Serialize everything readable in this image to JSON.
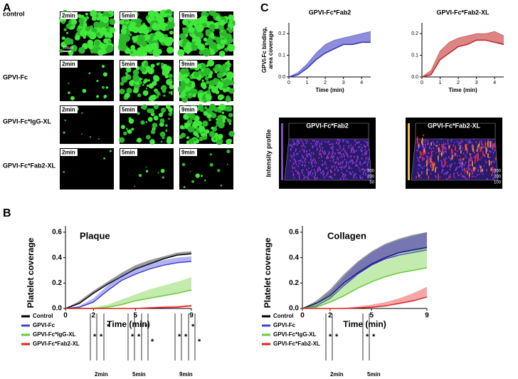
{
  "panel_labels": [
    "A",
    "B",
    "C"
  ],
  "panel_a": {
    "rows": [
      "control",
      "GPVI-Fc",
      "GPVI-Fc*IgG-XL",
      "GPVI-Fc*Fab2-XL"
    ],
    "times": [
      "2min",
      "5min",
      "9min"
    ],
    "scale_bar": "100µm"
  },
  "chart_data": [
    {
      "type": "line",
      "title": "Plaque",
      "xlabel": "Time (min)",
      "ylabel": "Platelet coverage",
      "x": [
        0,
        1,
        2,
        3,
        4,
        5,
        6,
        7,
        8,
        9
      ],
      "xlim": [
        0,
        9
      ],
      "xticks": [
        0,
        2,
        5,
        9
      ],
      "ylim": [
        0,
        0.65
      ],
      "yticks": [
        {
          "value": 0,
          "label": "0.0"
        },
        0.2,
        0.4,
        0.6
      ],
      "series": [
        {
          "name": "Control",
          "color": "#000000",
          "values": [
            0,
            0.04,
            0.12,
            0.19,
            0.25,
            0.31,
            0.35,
            0.39,
            0.42,
            0.43
          ],
          "error": [
            0,
            0.02,
            0.02,
            0.02,
            0.03,
            0.03,
            0.03,
            0.02,
            0.02,
            0.02
          ]
        },
        {
          "name": "GPVI-Fc",
          "color": "#4040d8",
          "values": [
            0,
            0.01,
            0.05,
            0.14,
            0.22,
            0.27,
            0.31,
            0.34,
            0.36,
            0.37
          ],
          "error": [
            0,
            0.01,
            0.03,
            0.04,
            0.04,
            0.04,
            0.04,
            0.04,
            0.04,
            0.04
          ]
        },
        {
          "name": "GPVI-Fc*IgG-XL",
          "color": "#66cc33",
          "values": [
            0,
            0,
            0,
            0.01,
            0.03,
            0.06,
            0.08,
            0.1,
            0.12,
            0.145
          ],
          "error": [
            0,
            0,
            0.01,
            0.02,
            0.04,
            0.05,
            0.07,
            0.08,
            0.09,
            0.1
          ]
        },
        {
          "name": "GPVI-Fc*Fab2-XL",
          "color": "#e02020",
          "values": [
            0,
            0,
            0,
            0,
            0,
            0,
            0.005,
            0.008,
            0.01,
            0.02
          ],
          "error": [
            0,
            0,
            0,
            0,
            0,
            0.005,
            0.005,
            0.01,
            0.01,
            0.01
          ]
        }
      ],
      "significance": [
        {
          "label": "2min",
          "stars": [
            "*",
            "*",
            "*"
          ]
        },
        {
          "label": "5min",
          "stars": [
            "*",
            "*",
            "*",
            "*"
          ]
        },
        {
          "label": "9min",
          "stars": [
            "*",
            "*",
            "*",
            "*"
          ]
        }
      ]
    },
    {
      "type": "line",
      "title": "Collagen",
      "xlabel": "Time (min)",
      "ylabel": "Platelet coverage",
      "x": [
        0,
        1,
        2,
        3,
        4,
        5,
        6,
        7,
        8,
        9
      ],
      "xlim": [
        0,
        9
      ],
      "xticks": [
        0,
        2,
        5,
        9
      ],
      "ylim": [
        0,
        0.65
      ],
      "yticks": [
        {
          "value": 0,
          "label": "0.0"
        },
        0.2,
        0.4,
        0.6
      ],
      "series": [
        {
          "name": "Control",
          "color": "#000000",
          "values": [
            0,
            0.04,
            0.1,
            0.2,
            0.28,
            0.35,
            0.4,
            0.44,
            0.46,
            0.48
          ],
          "error": [
            0,
            0.02,
            0.05,
            0.07,
            0.09,
            0.1,
            0.11,
            0.11,
            0.12,
            0.12
          ]
        },
        {
          "name": "GPVI-Fc",
          "color": "#4040d8",
          "values": [
            0,
            0.02,
            0.08,
            0.18,
            0.27,
            0.34,
            0.39,
            0.42,
            0.44,
            0.46
          ],
          "error": [
            0,
            0.02,
            0.05,
            0.07,
            0.09,
            0.1,
            0.11,
            0.12,
            0.13,
            0.14
          ]
        },
        {
          "name": "GPVI-Fc*IgG-XL",
          "color": "#66cc33",
          "values": [
            0,
            0.01,
            0.05,
            0.1,
            0.16,
            0.21,
            0.25,
            0.28,
            0.3,
            0.32
          ],
          "error": [
            0,
            0.02,
            0.05,
            0.08,
            0.1,
            0.12,
            0.13,
            0.14,
            0.15,
            0.15
          ]
        },
        {
          "name": "GPVI-Fc*Fab2-XL",
          "color": "#e02020",
          "values": [
            0,
            0,
            0,
            0,
            0.005,
            0.01,
            0.02,
            0.04,
            0.06,
            0.09
          ],
          "error": [
            0,
            0,
            0,
            0.005,
            0.01,
            0.02,
            0.03,
            0.04,
            0.06,
            0.08
          ]
        }
      ],
      "significance": [
        {
          "label": "2min",
          "stars": [
            "*",
            "*"
          ]
        },
        {
          "label": "5min",
          "stars": [
            "*",
            "*"
          ]
        }
      ]
    },
    {
      "type": "area",
      "title": "GPVI-Fc*Fab2",
      "xlabel": "Time (min)",
      "ylabel": [
        "GPVI-Fc binding,",
        "area coverage"
      ],
      "x": [
        0,
        0.5,
        1,
        1.5,
        2,
        2.5,
        3,
        3.5,
        4,
        4.5
      ],
      "xlim": [
        0,
        4.5
      ],
      "xticks": [
        0,
        1,
        2,
        3,
        4
      ],
      "ylim": [
        0,
        0.25
      ],
      "yticks": [
        {
          "value": 0,
          "label": "0.0"
        },
        0.1,
        0.2
      ],
      "series": [
        {
          "color": "#3030c0",
          "values": [
            0,
            0.01,
            0.04,
            0.08,
            0.11,
            0.13,
            0.15,
            0.15,
            0.16,
            0.16
          ],
          "upper": [
            0,
            0.02,
            0.06,
            0.11,
            0.15,
            0.17,
            0.18,
            0.19,
            0.2,
            0.21
          ]
        }
      ]
    },
    {
      "type": "area",
      "title": "GPVI-Fc*Fab2-XL",
      "xlabel": "Time (min)",
      "x": [
        0,
        0.5,
        1,
        1.5,
        2,
        2.5,
        3,
        3.5,
        4,
        4.5
      ],
      "xlim": [
        0,
        4.5
      ],
      "xticks": [
        0,
        1,
        2,
        3,
        4
      ],
      "ylim": [
        0,
        0.25
      ],
      "yticks": [
        {
          "value": 0,
          "label": "0.0"
        },
        0.1,
        0.2
      ],
      "series": [
        {
          "color": "#c02020",
          "values": [
            0,
            0.01,
            0.08,
            0.11,
            0.14,
            0.15,
            0.17,
            0.17,
            0.16,
            0.15
          ],
          "upper": [
            0,
            0.03,
            0.12,
            0.16,
            0.18,
            0.19,
            0.2,
            0.2,
            0.21,
            0.19
          ]
        }
      ]
    }
  ],
  "panel_c": {
    "row_label": "Intensity profile",
    "profiles": [
      {
        "title": "GPVI-Fc*Fab2",
        "axis_labels": [
          "300",
          "200",
          "50"
        ]
      },
      {
        "title": "GPVI-Fc*Fab2-XL",
        "axis_labels": [
          "300",
          "200",
          "100"
        ]
      }
    ]
  }
}
